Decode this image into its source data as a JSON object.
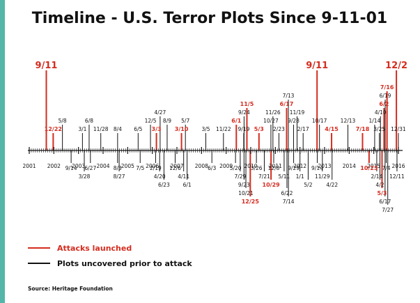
{
  "colors": {
    "attack": "#d42c1f",
    "plot": "#111111",
    "accent_bar": "#54b5a9"
  },
  "legend": {
    "attack_label": "Attacks launched",
    "plot_label": "Plots uncovered prior to attack"
  },
  "source": "Source: Heritage Foundation",
  "chart_data": {
    "type": "timeline",
    "title": "Timeline - U.S. Terror Plots Since 9-11-01",
    "x_range": [
      "2001",
      "2016"
    ],
    "years": [
      "2001",
      "2002",
      "2003",
      "2004",
      "2005",
      "2006",
      "2007",
      "2008",
      "2009",
      "2010",
      "2011",
      "2012",
      "2013",
      "2014",
      "2015",
      "2016"
    ],
    "events": [
      {
        "label": "9/11",
        "date": "2001-09-11",
        "kind": "attack",
        "above": true,
        "big": true
      },
      {
        "label": "12/22",
        "date": "2001-12-22",
        "kind": "attack",
        "above": true
      },
      {
        "label": "5/8",
        "date": "2002-05-08",
        "kind": "plot",
        "above": true
      },
      {
        "label": "9/14",
        "date": "2002-09-14",
        "kind": "plot",
        "above": false
      },
      {
        "label": "3/1",
        "date": "2003-03-01",
        "kind": "plot",
        "above": true
      },
      {
        "label": "3/28",
        "date": "2003-03-28",
        "kind": "plot",
        "above": false
      },
      {
        "label": "6/8",
        "date": "2003-06-08",
        "kind": "plot",
        "above": true
      },
      {
        "label": "6/27",
        "date": "2003-06-27",
        "kind": "plot",
        "above": false
      },
      {
        "label": "11/28",
        "date": "2003-11-28",
        "kind": "plot",
        "above": true
      },
      {
        "label": "8/4",
        "date": "2004-08-04",
        "kind": "plot",
        "above": true
      },
      {
        "label": "8/3",
        "date": "2004-08-03",
        "kind": "plot",
        "above": false
      },
      {
        "label": "8/27",
        "date": "2004-08-27",
        "kind": "plot",
        "above": false
      },
      {
        "label": "6/5",
        "date": "2005-06-05",
        "kind": "plot",
        "above": true
      },
      {
        "label": "7/5",
        "date": "2005-07-05",
        "kind": "plot",
        "above": false
      },
      {
        "label": "12/5",
        "date": "2005-12-05",
        "kind": "plot",
        "above": true
      },
      {
        "label": "2/19",
        "date": "2006-02-19",
        "kind": "plot",
        "above": false
      },
      {
        "label": "3/3",
        "date": "2006-03-03",
        "kind": "attack",
        "above": true
      },
      {
        "label": "4/20",
        "date": "2006-04-20",
        "kind": "plot",
        "above": false
      },
      {
        "label": "4/27",
        "date": "2006-04-27",
        "kind": "plot",
        "above": true
      },
      {
        "label": "6/23",
        "date": "2006-06-23",
        "kind": "plot",
        "above": false
      },
      {
        "label": "8/9",
        "date": "2006-08-09",
        "kind": "plot",
        "above": true
      },
      {
        "label": "12/6",
        "date": "2006-12-06",
        "kind": "plot",
        "above": false
      },
      {
        "label": "3/10",
        "date": "2007-03-10",
        "kind": "attack",
        "above": true
      },
      {
        "label": "4/11",
        "date": "2007-04-11",
        "kind": "plot",
        "above": false
      },
      {
        "label": "5/7",
        "date": "2007-05-07",
        "kind": "plot",
        "above": true
      },
      {
        "label": "6/1",
        "date": "2007-06-01",
        "kind": "plot",
        "above": false
      },
      {
        "label": "3/5",
        "date": "2008-03-05",
        "kind": "plot",
        "above": true
      },
      {
        "label": "6/3",
        "date": "2008-06-03",
        "kind": "plot",
        "above": false
      },
      {
        "label": "11/22",
        "date": "2008-11-22",
        "kind": "plot",
        "above": true
      },
      {
        "label": "5/20",
        "date": "2009-05-20",
        "kind": "plot",
        "above": false
      },
      {
        "label": "6/1",
        "date": "2009-06-01",
        "kind": "attack",
        "above": true
      },
      {
        "label": "7/29",
        "date": "2009-07-29",
        "kind": "plot",
        "above": false
      },
      {
        "label": "9/19",
        "date": "2009-09-19",
        "kind": "plot",
        "above": true
      },
      {
        "label": "9/23",
        "date": "2009-09-23",
        "kind": "plot",
        "above": false
      },
      {
        "label": "9/24",
        "date": "2009-09-24",
        "kind": "plot",
        "above": true
      },
      {
        "label": "10/21",
        "date": "2009-10-21",
        "kind": "plot",
        "above": false
      },
      {
        "label": "11/5",
        "date": "2009-11-05",
        "kind": "attack",
        "above": true
      },
      {
        "label": "12/25",
        "date": "2009-12-25",
        "kind": "attack",
        "above": false
      },
      {
        "label": "3/26",
        "date": "2010-03-26",
        "kind": "plot",
        "above": false
      },
      {
        "label": "5/3",
        "date": "2010-05-03",
        "kind": "attack",
        "above": true
      },
      {
        "label": "7/21",
        "date": "2010-07-21",
        "kind": "plot",
        "above": false
      },
      {
        "label": "10/27",
        "date": "2010-10-27",
        "kind": "plot",
        "above": true
      },
      {
        "label": "10/29",
        "date": "2010-10-29",
        "kind": "attack",
        "above": false
      },
      {
        "label": "11/26",
        "date": "2010-11-26",
        "kind": "plot",
        "above": true
      },
      {
        "label": "12/8",
        "date": "2010-12-08",
        "kind": "plot",
        "above": false
      },
      {
        "label": "2/23",
        "date": "2011-02-23",
        "kind": "plot",
        "above": true
      },
      {
        "label": "5/11",
        "date": "2011-05-11",
        "kind": "plot",
        "above": false
      },
      {
        "label": "6/17",
        "date": "2011-06-17",
        "kind": "attack",
        "above": true
      },
      {
        "label": "6/22",
        "date": "2011-06-22",
        "kind": "plot",
        "above": false
      },
      {
        "label": "7/13",
        "date": "2011-07-13",
        "kind": "plot",
        "above": true
      },
      {
        "label": "7/14",
        "date": "2011-07-14",
        "kind": "plot",
        "above": false
      },
      {
        "label": "9/28",
        "date": "2011-09-28",
        "kind": "plot",
        "above": true
      },
      {
        "label": "9/29",
        "date": "2011-09-29",
        "kind": "plot",
        "above": false
      },
      {
        "label": "11/19",
        "date": "2011-11-19",
        "kind": "plot",
        "above": true
      },
      {
        "label": "1/1",
        "date": "2012-01-01",
        "kind": "plot",
        "above": false
      },
      {
        "label": "2/17",
        "date": "2012-02-17",
        "kind": "plot",
        "above": true
      },
      {
        "label": "5/2",
        "date": "2012-05-02",
        "kind": "plot",
        "above": false
      },
      {
        "label": "9/11",
        "date": "2012-09-11",
        "kind": "attack",
        "above": true,
        "big": true
      },
      {
        "label": "9/14",
        "date": "2012-09-14",
        "kind": "plot",
        "above": false
      },
      {
        "label": "10/17",
        "date": "2012-10-17",
        "kind": "plot",
        "above": true
      },
      {
        "label": "11/29",
        "date": "2012-11-29",
        "kind": "plot",
        "above": false
      },
      {
        "label": "4/15",
        "date": "2013-04-15",
        "kind": "attack",
        "above": true
      },
      {
        "label": "4/22",
        "date": "2013-04-22",
        "kind": "plot",
        "above": false
      },
      {
        "label": "12/13",
        "date": "2013-12-13",
        "kind": "plot",
        "above": true
      },
      {
        "label": "7/18",
        "date": "2014-07-18",
        "kind": "attack",
        "above": true
      },
      {
        "label": "10/23",
        "date": "2014-10-23",
        "kind": "attack",
        "above": false
      },
      {
        "label": "1/14",
        "date": "2015-01-14",
        "kind": "plot",
        "above": true
      },
      {
        "label": "2/14",
        "date": "2015-02-14",
        "kind": "plot",
        "above": false
      },
      {
        "label": "3/25",
        "date": "2015-03-25",
        "kind": "plot",
        "above": true
      },
      {
        "label": "4/2",
        "date": "2015-04-02",
        "kind": "plot",
        "above": false
      },
      {
        "label": "4/10",
        "date": "2015-04-10",
        "kind": "plot",
        "above": true
      },
      {
        "label": "5/3",
        "date": "2015-05-03",
        "kind": "attack",
        "above": false
      },
      {
        "label": "6/2",
        "date": "2015-06-02",
        "kind": "attack",
        "above": true
      },
      {
        "label": "6/17",
        "date": "2015-06-17",
        "kind": "plot",
        "above": false
      },
      {
        "label": "6/19",
        "date": "2015-06-19",
        "kind": "plot",
        "above": true
      },
      {
        "label": "7/4",
        "date": "2015-07-04",
        "kind": "plot",
        "above": false
      },
      {
        "label": "7/16",
        "date": "2015-07-16",
        "kind": "attack",
        "above": true
      },
      {
        "label": "7/27",
        "date": "2015-07-27",
        "kind": "plot",
        "above": false
      },
      {
        "label": "12/2",
        "date": "2015-12-02",
        "kind": "attack",
        "above": true,
        "big": true
      },
      {
        "label": "12/11",
        "date": "2015-12-11",
        "kind": "plot",
        "above": false
      },
      {
        "label": "12/31",
        "date": "2015-12-31",
        "kind": "plot",
        "above": true
      }
    ]
  }
}
